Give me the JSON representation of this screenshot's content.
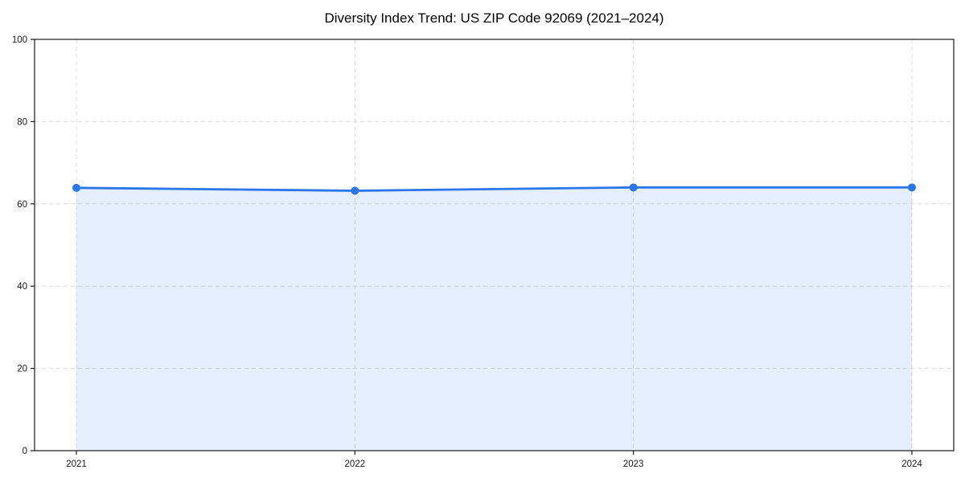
{
  "chart_data": {
    "type": "area",
    "title": "Diversity Index Trend: US ZIP Code 92069 (2021–2024)",
    "categories": [
      "2021",
      "2022",
      "2023",
      "2024"
    ],
    "series": [
      {
        "name": "Diversity Index",
        "values": [
          63.9,
          63.2,
          64.0,
          64.0
        ]
      }
    ],
    "xlabel": "",
    "ylabel": "",
    "ylim": [
      0,
      100
    ],
    "yticks": [
      0,
      20,
      40,
      60,
      80,
      100
    ],
    "grid": true,
    "grid_style": "dashed",
    "legend": "none",
    "colors": {
      "line": "#2b76e8",
      "marker": "#2b76e8",
      "fill": "rgba(43, 118, 232, 0.12)",
      "grid": "#dcdcdc",
      "axis": "#1a1a1a",
      "title": "#000000",
      "tick_label": "#1a1a1a",
      "background": "#ffffff"
    }
  }
}
